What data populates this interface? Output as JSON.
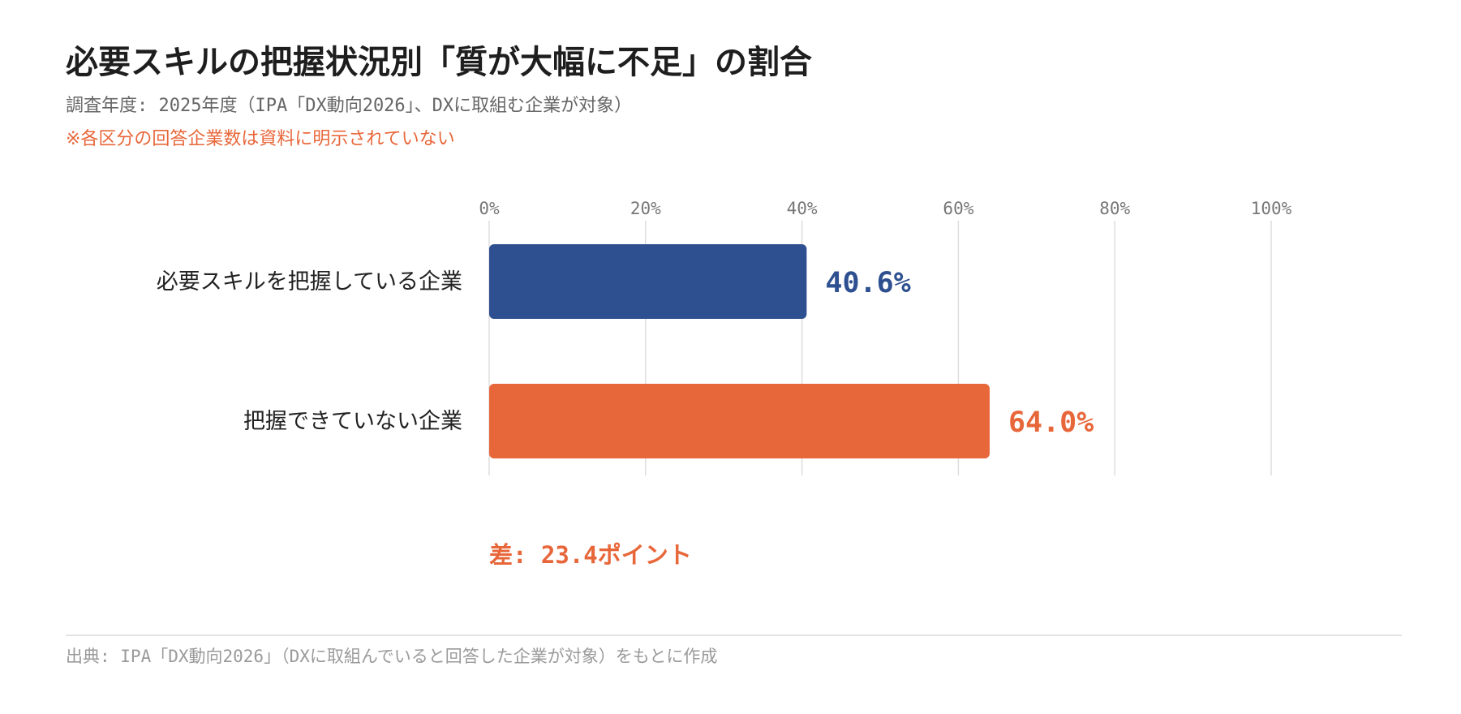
{
  "title": "必要スキルの把握状況別「質が大幅に不足」の割合",
  "subtitle": "調査年度: 2025年度（IPA「DX動向2026」、DXに取組む企業が対象）",
  "note": "※各区分の回答企業数は資料に明示されていない",
  "source": "出典: IPA「DX動向2026」（DXに取組んでいると回答した企業が対象）をもとに作成",
  "colors": {
    "bar_primary": "#2e5090",
    "bar_accent": "#e8673a",
    "grid": "#dddddd",
    "tick": "#777777",
    "label": "#222222"
  },
  "chart_data": {
    "type": "bar",
    "orientation": "horizontal",
    "categories": [
      "必要スキルを把握している企業",
      "把握できていない企業"
    ],
    "values": [
      40.6,
      64.0
    ],
    "value_labels": [
      "40.6%",
      "64.0%"
    ],
    "bar_colors": [
      "#2e5090",
      "#e8673a"
    ],
    "x_ticks": [
      "0%",
      "20%",
      "40%",
      "60%",
      "80%",
      "100%"
    ],
    "xlim": [
      0,
      100
    ],
    "grid": true,
    "annotation": "差: 23.4ポイント"
  }
}
